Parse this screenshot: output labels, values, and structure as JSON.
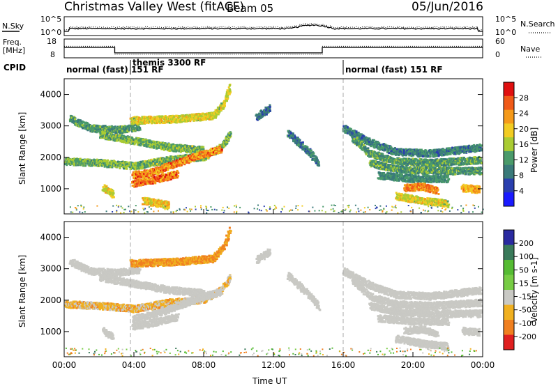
{
  "header": {
    "title": "Christmas Valley West (fitACF)",
    "beam": "Beam 05",
    "date": "05/Jun/2016"
  },
  "aux": {
    "nsky_label": "N.Sky",
    "nsearch_label": "N.Search",
    "noise_ticks_left": [
      "10^5",
      "10^0"
    ],
    "noise_ticks_right": [
      "10^5",
      "10^0"
    ],
    "freq_label_1": "Freq.",
    "freq_label_2": "[MHz]",
    "freq_ticks": [
      "18",
      "8"
    ],
    "nave_label": "Nave",
    "nave_ticks": [
      "60",
      "0"
    ],
    "cpid_label": "CPID",
    "cpid_segments": [
      {
        "text": "normal (fast)  151 RF",
        "start": 0,
        "end": 3.8
      },
      {
        "text": "themis 3300 RF",
        "start": 3.8,
        "end": 16.0
      },
      {
        "text": "normal (fast)  151 RF",
        "start": 16.0,
        "end": 24.0
      }
    ],
    "freq_series": [
      [
        0,
        13.6
      ],
      [
        2.9,
        13.6
      ],
      [
        2.9,
        10.2
      ],
      [
        14.8,
        10.2
      ],
      [
        14.8,
        13.6
      ],
      [
        24,
        13.6
      ]
    ],
    "nave_series": [
      [
        0,
        38
      ],
      [
        2.9,
        38
      ],
      [
        2.9,
        8
      ],
      [
        14.8,
        8
      ],
      [
        14.8,
        38
      ],
      [
        24,
        38
      ]
    ]
  },
  "chart_data": [
    {
      "type": "heatmap",
      "panel": "power",
      "ylabel": "Slant Range [km]",
      "xlim": [
        0,
        24
      ],
      "ylim": [
        200,
        4500
      ],
      "yticks": [
        "1000",
        "2000",
        "3000",
        "4000"
      ],
      "xticks": [
        "00:00",
        "04:00",
        "08:00",
        "12:00",
        "16:00",
        "20:00",
        "00:00"
      ],
      "colorbar": {
        "label": "Power [dB]",
        "ticks": [
          "28",
          "24",
          "20",
          "16",
          "12",
          "8",
          "4"
        ],
        "range": [
          0,
          32
        ]
      },
      "bands": [
        {
          "pts": [
            [
              0.3,
              3250
            ],
            [
              1.5,
              2950
            ],
            [
              3.0,
              2900
            ],
            [
              4.3,
              3000
            ]
          ],
          "v": [
            8,
            16
          ]
        },
        {
          "pts": [
            [
              3.8,
              3200
            ],
            [
              6.5,
              3250
            ],
            [
              8.5,
              3350
            ],
            [
              9.1,
              3700
            ],
            [
              9.5,
              4300
            ]
          ],
          "v": [
            14,
            22
          ]
        },
        {
          "pts": [
            [
              2.0,
              2750
            ],
            [
              3.0,
              2650
            ],
            [
              4.5,
              2500
            ],
            [
              6.0,
              2350
            ],
            [
              8.0,
              2250
            ]
          ],
          "v": [
            10,
            18
          ]
        },
        {
          "pts": [
            [
              0,
              1900
            ],
            [
              2.0,
              1850
            ],
            [
              4.0,
              1750
            ],
            [
              6.0,
              1950
            ],
            [
              8.0,
              2050
            ],
            [
              9.0,
              2350
            ],
            [
              9.5,
              2800
            ]
          ],
          "v": [
            10,
            18
          ]
        },
        {
          "pts": [
            [
              3.9,
              1450
            ],
            [
              5.0,
              1550
            ],
            [
              6.5,
              1850
            ],
            [
              8.0,
              2150
            ],
            [
              9.0,
              2300
            ]
          ],
          "v": [
            18,
            30
          ]
        },
        {
          "pts": [
            [
              3.9,
              1200
            ],
            [
              5.0,
              1300
            ],
            [
              6.5,
              1500
            ]
          ],
          "v": [
            20,
            30
          ]
        },
        {
          "pts": [
            [
              2.2,
              1050
            ],
            [
              2.8,
              850
            ]
          ],
          "v": [
            14,
            22
          ]
        },
        {
          "pts": [
            [
              4.5,
              650
            ],
            [
              6.0,
              500
            ]
          ],
          "v": [
            16,
            24
          ]
        },
        {
          "pts": [
            [
              11.0,
              3300
            ],
            [
              11.8,
              3600
            ]
          ],
          "v": [
            6,
            12
          ]
        },
        {
          "pts": [
            [
              12.8,
              2800
            ],
            [
              14.0,
              2200
            ],
            [
              14.6,
              1800
            ]
          ],
          "v": [
            6,
            12
          ]
        },
        {
          "pts": [
            [
              16.0,
              2950
            ],
            [
              17.5,
              2500
            ],
            [
              19.0,
              2200
            ],
            [
              21.0,
              2150
            ],
            [
              24,
              2350
            ]
          ],
          "v": [
            6,
            14
          ]
        },
        {
          "pts": [
            [
              16.5,
              2650
            ],
            [
              17.5,
              2150
            ],
            [
              19.0,
              1900
            ],
            [
              21.0,
              1850
            ],
            [
              24,
              1950
            ]
          ],
          "v": [
            8,
            16
          ]
        },
        {
          "pts": [
            [
              17.5,
              1850
            ],
            [
              19.0,
              1650
            ],
            [
              21.0,
              1600
            ],
            [
              24,
              1600
            ]
          ],
          "v": [
            8,
            16
          ]
        },
        {
          "pts": [
            [
              18.0,
              1450
            ],
            [
              20.0,
              1350
            ],
            [
              22.0,
              1350
            ]
          ],
          "v": [
            8,
            14
          ]
        },
        {
          "pts": [
            [
              19.5,
              1050
            ],
            [
              20.5,
              1100
            ],
            [
              21.4,
              950
            ]
          ],
          "v": [
            20,
            28
          ]
        },
        {
          "pts": [
            [
              22.8,
              1050
            ],
            [
              23.8,
              1000
            ]
          ],
          "v": [
            18,
            26
          ]
        },
        {
          "pts": [
            [
              19.0,
              800
            ],
            [
              20.5,
              650
            ],
            [
              22.0,
              550
            ]
          ],
          "v": [
            14,
            22
          ]
        }
      ]
    },
    {
      "type": "heatmap",
      "panel": "velocity",
      "ylabel": "Slant Range [km]",
      "xlabel": "Time UT",
      "xlim": [
        0,
        24
      ],
      "ylim": [
        200,
        4500
      ],
      "yticks": [
        "1000",
        "2000",
        "3000",
        "4000"
      ],
      "xticks": [
        "00:00",
        "04:00",
        "08:00",
        "12:00",
        "16:00",
        "20:00",
        "00:00"
      ],
      "colorbar": {
        "label": "Velocity [m s-1]",
        "ticks": [
          "200",
          "100",
          "50",
          "15",
          "-15",
          "-50",
          "-100",
          "-200"
        ],
        "range": [
          -250,
          250
        ]
      },
      "bands": [
        {
          "pts": [
            [
              0.3,
              3250
            ],
            [
              1.5,
              2950
            ],
            [
              3.0,
              2900
            ],
            [
              4.3,
              3000
            ]
          ],
          "v": [
            -10,
            10
          ]
        },
        {
          "pts": [
            [
              3.8,
              3200
            ],
            [
              6.5,
              3250
            ],
            [
              8.5,
              3350
            ],
            [
              9.1,
              3700
            ],
            [
              9.5,
              4300
            ]
          ],
          "v": [
            -80,
            -20
          ]
        },
        {
          "pts": [
            [
              2.0,
              2750
            ],
            [
              3.0,
              2650
            ],
            [
              4.5,
              2500
            ],
            [
              6.0,
              2350
            ],
            [
              8.0,
              2250
            ]
          ],
          "v": [
            -10,
            10
          ]
        },
        {
          "pts": [
            [
              0,
              1900
            ],
            [
              2.0,
              1850
            ],
            [
              4.0,
              1750
            ],
            [
              6.0,
              1950
            ],
            [
              8.0,
              2050
            ],
            [
              9.0,
              2350
            ],
            [
              9.5,
              2800
            ]
          ],
          "v": [
            -60,
            10
          ]
        },
        {
          "pts": [
            [
              3.9,
              1450
            ],
            [
              5.0,
              1550
            ],
            [
              6.5,
              1850
            ],
            [
              8.0,
              2150
            ],
            [
              9.0,
              2300
            ]
          ],
          "v": [
            -10,
            10
          ]
        },
        {
          "pts": [
            [
              3.9,
              1200
            ],
            [
              5.0,
              1300
            ],
            [
              6.5,
              1500
            ]
          ],
          "v": [
            -10,
            10
          ]
        },
        {
          "pts": [
            [
              2.2,
              1050
            ],
            [
              2.8,
              850
            ]
          ],
          "v": [
            -10,
            10
          ]
        },
        {
          "pts": [
            [
              11.0,
              3300
            ],
            [
              11.8,
              3600
            ]
          ],
          "v": [
            -10,
            10
          ]
        },
        {
          "pts": [
            [
              12.8,
              2800
            ],
            [
              14.0,
              2200
            ],
            [
              14.6,
              1800
            ]
          ],
          "v": [
            -10,
            10
          ]
        },
        {
          "pts": [
            [
              16.0,
              2950
            ],
            [
              17.5,
              2500
            ],
            [
              19.0,
              2200
            ],
            [
              21.0,
              2150
            ],
            [
              24,
              2350
            ]
          ],
          "v": [
            -10,
            10
          ]
        },
        {
          "pts": [
            [
              16.5,
              2650
            ],
            [
              17.5,
              2150
            ],
            [
              19.0,
              1900
            ],
            [
              21.0,
              1850
            ],
            [
              24,
              1950
            ]
          ],
          "v": [
            -10,
            10
          ]
        },
        {
          "pts": [
            [
              17.5,
              1850
            ],
            [
              19.0,
              1650
            ],
            [
              21.0,
              1600
            ],
            [
              24,
              1600
            ]
          ],
          "v": [
            -10,
            10
          ]
        },
        {
          "pts": [
            [
              18.0,
              1450
            ],
            [
              20.0,
              1350
            ],
            [
              22.0,
              1350
            ]
          ],
          "v": [
            -10,
            10
          ]
        },
        {
          "pts": [
            [
              19.5,
              1050
            ],
            [
              20.5,
              1100
            ],
            [
              21.4,
              950
            ]
          ],
          "v": [
            -10,
            10
          ]
        },
        {
          "pts": [
            [
              22.8,
              1050
            ],
            [
              23.8,
              1000
            ]
          ],
          "v": [
            -10,
            10
          ]
        },
        {
          "pts": [
            [
              19.0,
              800
            ],
            [
              20.5,
              650
            ],
            [
              22.0,
              550
            ]
          ],
          "v": [
            -10,
            10
          ]
        }
      ]
    }
  ]
}
